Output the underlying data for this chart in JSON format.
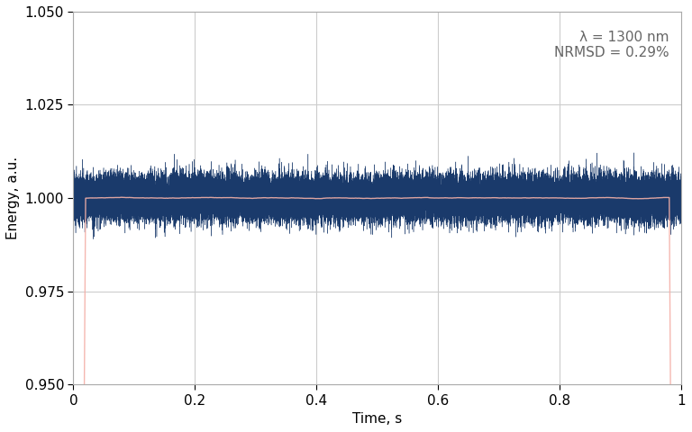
{
  "title": "",
  "xlabel": "Time, s",
  "ylabel": "Energy, a.u.",
  "xlim": [
    0,
    1.0
  ],
  "ylim": [
    0.95,
    1.05
  ],
  "yticks": [
    0.95,
    0.975,
    1.0,
    1.025,
    1.05
  ],
  "xticks": [
    0,
    0.2,
    0.4,
    0.6,
    0.8,
    1.0
  ],
  "annotation_line1": "λ = 1300 nm",
  "annotation_line2": "NRMSD = 0.29%",
  "signal_color": "#1a3a6b",
  "smooth_color": "#f4b0a8",
  "n_points": 50000,
  "noise_std": 0.0029,
  "mean_value": 1.0,
  "smooth_window": 2000,
  "background_color": "#ffffff",
  "grid_color": "#cccccc",
  "text_color": "#666666",
  "font_size": 11,
  "linewidth_signal": 0.3,
  "linewidth_smooth": 1.0
}
